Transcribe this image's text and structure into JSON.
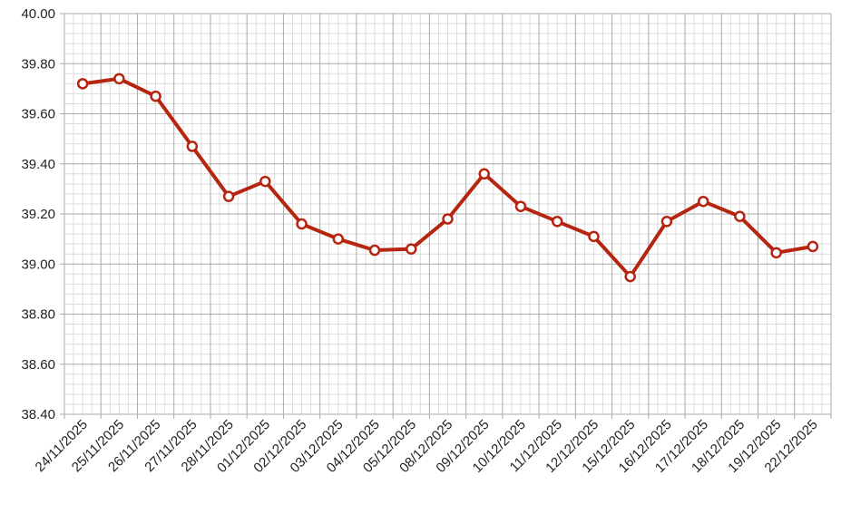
{
  "chart_data": {
    "type": "line",
    "categories": [
      "24/11/2025",
      "25/11/2025",
      "26/11/2025",
      "27/11/2025",
      "28/11/2025",
      "01/12/2025",
      "02/12/2025",
      "03/12/2025",
      "04/12/2025",
      "05/12/2025",
      "08/12/2025",
      "09/12/2025",
      "10/12/2025",
      "11/12/2025",
      "12/12/2025",
      "15/12/2025",
      "16/12/2025",
      "17/12/2025",
      "18/12/2025",
      "19/12/2025",
      "22/12/2025"
    ],
    "values": [
      39.72,
      39.74,
      39.67,
      39.47,
      39.27,
      39.33,
      39.16,
      39.1,
      39.055,
      39.06,
      39.18,
      39.36,
      39.23,
      39.17,
      39.11,
      38.95,
      39.17,
      39.25,
      39.19,
      39.045,
      39.07
    ],
    "color": "#b5250f",
    "ylim": [
      38.4,
      40.0
    ],
    "yticks": [
      {
        "value": 38.4,
        "label": "38.40"
      },
      {
        "value": 38.6,
        "label": "38.60"
      },
      {
        "value": 38.8,
        "label": "38.80"
      },
      {
        "value": 39.0,
        "label": "39.00"
      },
      {
        "value": 39.2,
        "label": "39.20"
      },
      {
        "value": 39.4,
        "label": "39.40"
      },
      {
        "value": 39.6,
        "label": "39.60"
      },
      {
        "value": 39.8,
        "label": "39.80"
      },
      {
        "value": 40.0,
        "label": "40.00"
      }
    ],
    "grid": true
  }
}
